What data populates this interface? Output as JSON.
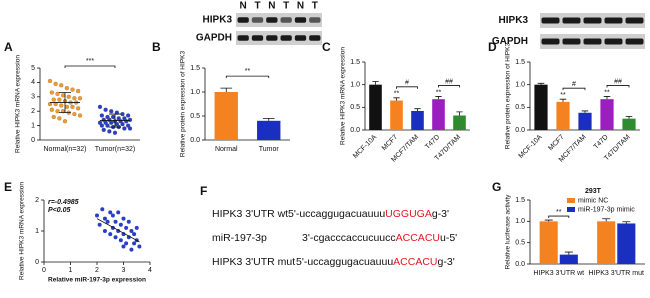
{
  "chart_data": [
    {
      "type": "strip",
      "panel": "A",
      "ylabel": "Relative HIPK3 mRNA expression",
      "categories": [
        "Normal(n=32)",
        "Tumor(n=32)"
      ],
      "colors": [
        "#f39a2b",
        "#2a3fc8"
      ],
      "points": [
        [
          4.1,
          3.9,
          3.8,
          3.6,
          3.5,
          3.4,
          3.3,
          3.2,
          3.1,
          3.0,
          2.9,
          2.9,
          2.8,
          2.8,
          2.7,
          2.6,
          2.6,
          2.5,
          2.5,
          2.4,
          2.3,
          2.3,
          2.2,
          2.1,
          2.0,
          2.0,
          1.9,
          1.8,
          1.7,
          1.6,
          1.5,
          1.3
        ],
        [
          2.3,
          2.1,
          2.0,
          1.9,
          1.8,
          1.7,
          1.7,
          1.6,
          1.6,
          1.5,
          1.5,
          1.4,
          1.4,
          1.4,
          1.3,
          1.3,
          1.3,
          1.2,
          1.2,
          1.2,
          1.1,
          1.1,
          1.0,
          1.0,
          1.0,
          0.9,
          0.9,
          0.8,
          0.8,
          0.7,
          0.6,
          0.5
        ]
      ],
      "means": [
        2.6,
        1.35
      ],
      "sd": [
        0.7,
        0.45
      ],
      "ylim": [
        0,
        5
      ],
      "yticks": [
        0,
        1,
        2,
        3,
        4,
        5
      ],
      "annotations": [
        {
          "text": "***"
        }
      ]
    },
    {
      "type": "bar",
      "panel": "B",
      "ylabel": "Relative protein expression of HIPK3",
      "categories": [
        "Normal",
        "Tumor"
      ],
      "values": [
        1.0,
        0.4
      ],
      "errors": [
        0.08,
        0.05
      ],
      "colors": [
        "#f58220",
        "#1a2fbf"
      ],
      "ylim": [
        0,
        1.5
      ],
      "yticks": [
        {
          "value": 0,
          "label": "0.0"
        },
        {
          "value": 0.5,
          "label": "0.5"
        },
        {
          "value": 1,
          "label": "1.0"
        },
        {
          "value": 1.5,
          "label": "1.5"
        }
      ],
      "annotations": [
        {
          "text": "**"
        }
      ]
    },
    {
      "type": "bar",
      "panel": "C",
      "ylabel": "Relative HIPK3 mRNA expression",
      "categories": [
        "MCF-10A",
        "MCF7",
        "MCF7/TAM",
        "T47D",
        "T47D/TAM"
      ],
      "values": [
        1.0,
        0.65,
        0.42,
        0.68,
        0.32
      ],
      "errors": [
        0.07,
        0.06,
        0.05,
        0.06,
        0.08
      ],
      "colors": [
        "#111111",
        "#f58220",
        "#1a2fbf",
        "#9b1fbf",
        "#2e8b2e"
      ],
      "ylim": [
        0,
        1.5
      ],
      "yticks": [
        {
          "value": 0,
          "label": "0.0"
        },
        {
          "value": 0.5,
          "label": "0.5"
        },
        {
          "value": 1,
          "label": "1.0"
        },
        {
          "value": 1.5,
          "label": "1.5"
        }
      ],
      "annotations": [
        {
          "text": "**"
        },
        {
          "text": "#"
        },
        {
          "text": "**"
        },
        {
          "text": "##"
        }
      ]
    },
    {
      "type": "bar",
      "panel": "D",
      "ylabel": "Relative protein expression of HIPK3",
      "categories": [
        "MCF-10A",
        "MCF7",
        "MCF7/TAM",
        "T47D",
        "T47D/TAM"
      ],
      "values": [
        1.0,
        0.62,
        0.38,
        0.68,
        0.25
      ],
      "errors": [
        0.03,
        0.06,
        0.04,
        0.06,
        0.05
      ],
      "colors": [
        "#111111",
        "#f58220",
        "#1a2fbf",
        "#9b1fbf",
        "#2e8b2e"
      ],
      "ylim": [
        0,
        1.5
      ],
      "yticks": [
        {
          "value": 0,
          "label": "0.0"
        },
        {
          "value": 0.5,
          "label": "0.5"
        },
        {
          "value": 1,
          "label": "1.0"
        },
        {
          "value": 1.5,
          "label": "1.5"
        }
      ],
      "annotations": [
        {
          "text": "**"
        },
        {
          "text": "#"
        },
        {
          "text": "**"
        },
        {
          "text": "##"
        }
      ]
    },
    {
      "type": "scatter",
      "panel": "E",
      "xlabel": "Relative miR-197-3p expression",
      "ylabel": "Relative HIPK3 mRNA expression",
      "color": "#2a3fc8",
      "x": [
        2.0,
        2.1,
        2.2,
        2.3,
        2.3,
        2.4,
        2.5,
        2.5,
        2.6,
        2.6,
        2.7,
        2.7,
        2.8,
        2.8,
        2.9,
        2.9,
        3.0,
        3.0,
        3.0,
        3.1,
        3.1,
        3.2,
        3.2,
        3.3,
        3.3,
        3.4,
        3.4,
        3.5,
        3.5,
        3.6
      ],
      "y": [
        1.5,
        1.2,
        1.7,
        1.0,
        1.4,
        1.3,
        1.6,
        0.9,
        1.1,
        1.5,
        0.8,
        1.3,
        1.0,
        1.6,
        0.7,
        1.2,
        1.4,
        0.9,
        0.5,
        1.1,
        0.6,
        1.3,
        0.8,
        1.0,
        0.4,
        0.9,
        0.6,
        0.7,
        1.1,
        0.5
      ],
      "fit": {
        "x": [
          2.0,
          3.6
        ],
        "y": [
          1.4,
          0.65
        ]
      },
      "xlim": [
        0,
        4
      ],
      "xticks": [
        0,
        1,
        2,
        3,
        4
      ],
      "ylim": [
        0,
        2
      ],
      "yticks": [
        0,
        1,
        2
      ],
      "annotations": [
        {
          "text": "r=-0.4985"
        },
        {
          "text": "P<0.05"
        }
      ]
    },
    {
      "type": "grouped_bar",
      "panel": "G",
      "ylabel": "Relative luciferase activity",
      "legend_title": "293T",
      "legend": "upper right",
      "categories": [
        "HIPK3 3'UTR wt",
        "HIPK3 3'UTR mut"
      ],
      "series": [
        {
          "name": "mimic NC",
          "color": "#f58220",
          "values": [
            1.0,
            1.0
          ],
          "errors": [
            0.03,
            0.06
          ]
        },
        {
          "name": "miR-197-3p mimic",
          "color": "#1a2fbf",
          "values": [
            0.22,
            0.95
          ],
          "errors": [
            0.06,
            0.04
          ]
        }
      ],
      "ylim": [
        0,
        1.5
      ],
      "yticks": [
        {
          "value": 0,
          "label": "0.0"
        },
        {
          "value": 0.5,
          "label": "0.5"
        },
        {
          "value": 1,
          "label": "1.0"
        },
        {
          "value": 1.5,
          "label": "1.5"
        }
      ],
      "annotations": [
        {
          "text": "**"
        }
      ]
    }
  ],
  "blots": [
    {
      "lanes": [
        "N",
        "T",
        "N",
        "T",
        "N",
        "T"
      ],
      "rows": [
        "HIPK3",
        "GAPDH"
      ]
    },
    {
      "rows": [
        "HIPK3",
        "GAPDH"
      ]
    }
  ],
  "sequence_panel": {
    "panel": "F",
    "rows": [
      {
        "label": "HIPK3 3'UTR wt",
        "parts": [
          "5'-uccaggugacuauuu",
          "UGGUGA",
          "g-3'"
        ]
      },
      {
        "label": "miR-197-3p",
        "parts": [
          "3'-cgacccaccucuucc",
          "ACCACU",
          "u-5'"
        ]
      },
      {
        "label": "HIPK3 3'UTR mut",
        "parts": [
          "5'-uccaggugacuauuu",
          "ACCACU",
          "g-3'"
        ]
      }
    ]
  }
}
